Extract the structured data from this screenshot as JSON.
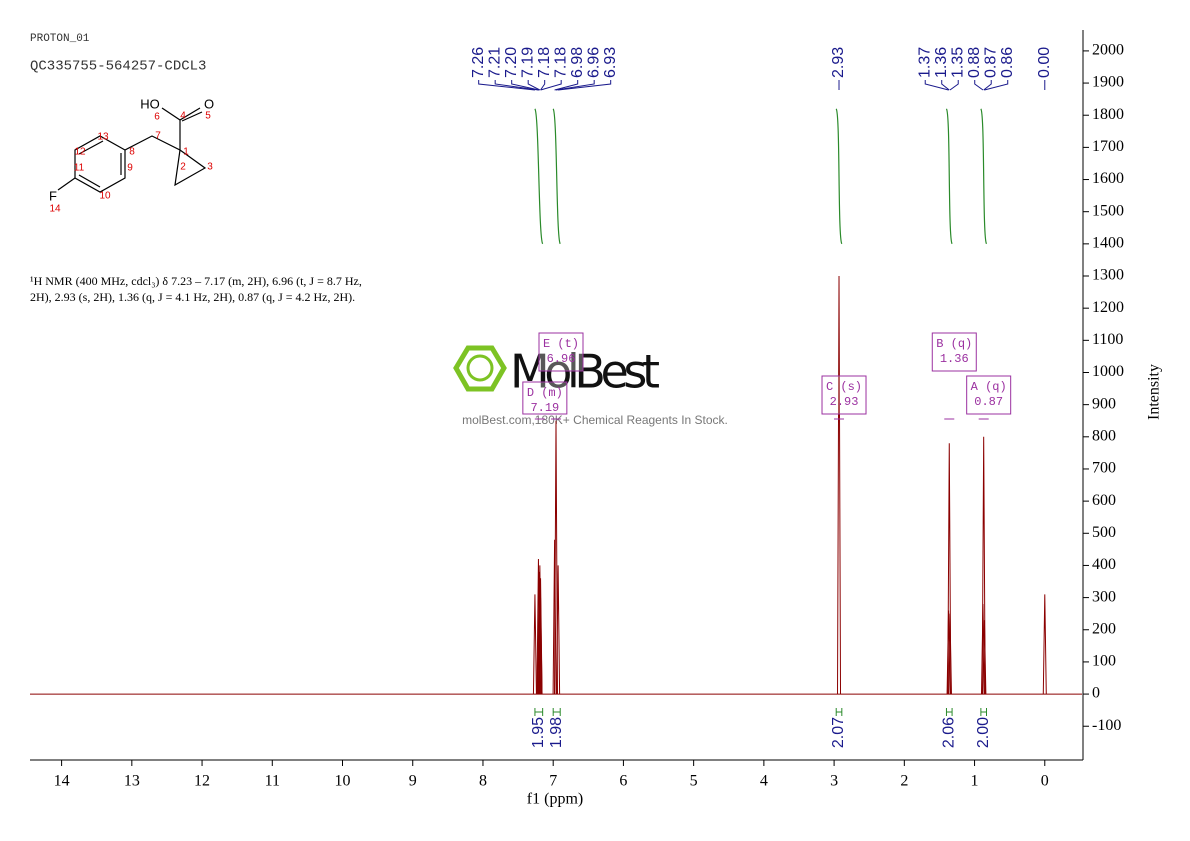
{
  "header": {
    "experiment": "PROTON_01",
    "sample": "QC335755-564257-CDCL3"
  },
  "structure": {
    "atom_labels": [
      "HO",
      "O",
      "F"
    ],
    "atom_numbers": [
      1,
      2,
      3,
      4,
      5,
      6,
      7,
      8,
      9,
      10,
      11,
      12,
      13,
      14
    ]
  },
  "description": [
    "¹H NMR (400 MHz, cdcl₃) δ 7.23 – 7.17 (m, 2H), 6.96 (t, J = 8.7 Hz,",
    "2H), 2.93 (s, 2H), 1.36 (q, J = 4.1 Hz, 2H), 0.87 (q, J = 4.2 Hz, 2H)."
  ],
  "watermark": {
    "brand": "MolBest",
    "tagline": "molBest.com,180K+ Chemical Reagents In Stock."
  },
  "chart_data": {
    "type": "nmr",
    "x_label": "f1 (ppm)",
    "y_label": "Intensity",
    "color": "#8b0000",
    "xlim": [
      14.45,
      -0.53
    ],
    "xticks": [
      14,
      13,
      12,
      11,
      10,
      9,
      8,
      7,
      6,
      5,
      4,
      3,
      2,
      1,
      0
    ],
    "ylim": [
      -205,
      2065
    ],
    "yticks": [
      -100,
      0,
      100,
      200,
      300,
      400,
      500,
      600,
      700,
      800,
      900,
      1000,
      1100,
      1200,
      1300,
      1400,
      1500,
      1600,
      1700,
      1800,
      1900,
      2000
    ],
    "peaks": {
      "ppm": [
        7.26,
        7.21,
        7.2,
        7.19,
        7.18,
        7.18,
        6.98,
        6.96,
        6.93,
        2.93,
        1.37,
        1.36,
        1.35,
        0.88,
        0.87,
        0.86,
        0.0
      ],
      "labels": [
        "7.26",
        "7.21",
        "7.20",
        "7.19",
        "7.18",
        "7.18",
        "6.98",
        "6.96",
        "6.93",
        "2.93",
        "1.37",
        "1.36",
        "1.35",
        "0.88",
        "0.87",
        "0.86",
        "0.00"
      ],
      "intensity": [
        310,
        420,
        380,
        400,
        360,
        300,
        480,
        850,
        400,
        1300,
        260,
        780,
        250,
        280,
        800,
        230,
        310
      ]
    },
    "integrals": [
      {
        "range": [
          7.26,
          7.15
        ],
        "label": "1.95"
      },
      {
        "range": [
          7.0,
          6.9
        ],
        "label": "1.98"
      },
      {
        "range": [
          2.97,
          2.89
        ],
        "label": "2.07"
      },
      {
        "range": [
          1.4,
          1.32
        ],
        "label": "2.06"
      },
      {
        "range": [
          0.91,
          0.83
        ],
        "label": "2.00"
      }
    ],
    "multiplets": [
      {
        "name": "A (q)",
        "shift": 0.87
      },
      {
        "name": "B (q)",
        "shift": 1.36
      },
      {
        "name": "C (s)",
        "shift": 2.93
      },
      {
        "name": "D (m)",
        "shift": 7.19
      },
      {
        "name": "E (t)",
        "shift": 6.96
      }
    ]
  }
}
